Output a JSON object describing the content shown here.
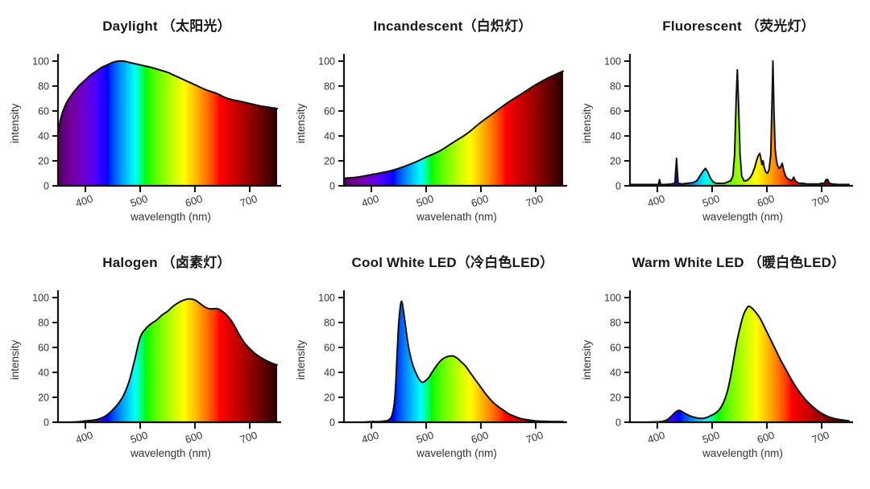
{
  "figure": {
    "background": "#ffffff",
    "text_color": "#333333",
    "curve_line_color": "#111111",
    "description": "Spectral power distributions of six light sources"
  },
  "chart_data": [
    {
      "id": "daylight",
      "type": "area",
      "title": "Daylight （太阳光）",
      "xlabel": "wavelength (nm)",
      "ylabel": "intensity",
      "xlim": [
        350,
        750
      ],
      "ylim": [
        0,
        100
      ],
      "x_ticks": [
        400,
        500,
        600,
        700
      ],
      "y_ticks": [
        0,
        20,
        40,
        60,
        80,
        100
      ],
      "smooth": true,
      "fill": "visible-spectrum-gradient",
      "points": [
        [
          350,
          42
        ],
        [
          355,
          54
        ],
        [
          360,
          61
        ],
        [
          365,
          66
        ],
        [
          370,
          70
        ],
        [
          380,
          76
        ],
        [
          390,
          81
        ],
        [
          400,
          85
        ],
        [
          410,
          89
        ],
        [
          420,
          92
        ],
        [
          430,
          95
        ],
        [
          440,
          97
        ],
        [
          450,
          99
        ],
        [
          460,
          100
        ],
        [
          470,
          100
        ],
        [
          480,
          99
        ],
        [
          490,
          98
        ],
        [
          500,
          97
        ],
        [
          510,
          96
        ],
        [
          520,
          95
        ],
        [
          535,
          93
        ],
        [
          550,
          91
        ],
        [
          565,
          88
        ],
        [
          580,
          85
        ],
        [
          600,
          81
        ],
        [
          620,
          77
        ],
        [
          640,
          74
        ],
        [
          660,
          70
        ],
        [
          680,
          68
        ],
        [
          700,
          66
        ],
        [
          720,
          64
        ],
        [
          735,
          63
        ],
        [
          750,
          62
        ]
      ]
    },
    {
      "id": "incandescent",
      "type": "area",
      "title": "Incandescent（白炽灯）",
      "xlabel": "wavelenath (nm)",
      "ylabel": "intensity",
      "xlim": [
        350,
        750
      ],
      "ylim": [
        0,
        100
      ],
      "x_ticks": [
        400,
        500,
        600,
        700
      ],
      "y_ticks": [
        0,
        20,
        40,
        60,
        80,
        100
      ],
      "smooth": true,
      "fill": "visible-spectrum-gradient",
      "points": [
        [
          350,
          6
        ],
        [
          375,
          7
        ],
        [
          400,
          9
        ],
        [
          425,
          11
        ],
        [
          450,
          14
        ],
        [
          475,
          18
        ],
        [
          500,
          23
        ],
        [
          525,
          28
        ],
        [
          550,
          35
        ],
        [
          575,
          42
        ],
        [
          600,
          51
        ],
        [
          625,
          59
        ],
        [
          650,
          67
        ],
        [
          675,
          74
        ],
        [
          700,
          81
        ],
        [
          725,
          87
        ],
        [
          750,
          92
        ]
      ]
    },
    {
      "id": "fluorescent",
      "type": "area",
      "title": "Fluorescent （荧光灯）",
      "xlabel": "wavelength (nm)",
      "ylabel": "intensity",
      "xlim": [
        350,
        750
      ],
      "ylim": [
        0,
        100
      ],
      "x_ticks": [
        400,
        500,
        600,
        700
      ],
      "y_ticks": [
        0,
        20,
        40,
        60,
        80,
        100
      ],
      "smooth": false,
      "fill": "visible-spectrum-gradient",
      "points": [
        [
          350,
          1
        ],
        [
          365,
          1
        ],
        [
          380,
          1
        ],
        [
          395,
          1
        ],
        [
          402,
          1
        ],
        [
          404,
          5
        ],
        [
          406,
          1
        ],
        [
          415,
          1
        ],
        [
          425,
          1.5
        ],
        [
          432,
          2
        ],
        [
          435,
          22
        ],
        [
          438,
          2
        ],
        [
          445,
          1.5
        ],
        [
          455,
          2
        ],
        [
          465,
          2.5
        ],
        [
          472,
          4
        ],
        [
          478,
          8
        ],
        [
          484,
          12
        ],
        [
          488,
          14
        ],
        [
          492,
          11
        ],
        [
          497,
          6
        ],
        [
          502,
          3
        ],
        [
          508,
          2
        ],
        [
          515,
          2
        ],
        [
          522,
          2
        ],
        [
          528,
          3
        ],
        [
          534,
          4
        ],
        [
          538,
          8
        ],
        [
          541,
          25
        ],
        [
          544,
          70
        ],
        [
          546,
          93
        ],
        [
          548,
          70
        ],
        [
          551,
          25
        ],
        [
          554,
          8
        ],
        [
          558,
          4
        ],
        [
          562,
          4
        ],
        [
          566,
          5
        ],
        [
          570,
          7
        ],
        [
          574,
          10
        ],
        [
          578,
          15
        ],
        [
          581,
          20
        ],
        [
          584,
          24
        ],
        [
          587,
          26
        ],
        [
          589,
          22
        ],
        [
          591,
          17
        ],
        [
          593,
          20
        ],
        [
          595,
          15
        ],
        [
          598,
          11
        ],
        [
          601,
          10
        ],
        [
          604,
          13
        ],
        [
          607,
          25
        ],
        [
          609,
          60
        ],
        [
          611,
          100
        ],
        [
          613,
          60
        ],
        [
          615,
          30
        ],
        [
          617,
          22
        ],
        [
          619,
          17
        ],
        [
          622,
          14
        ],
        [
          625,
          15
        ],
        [
          628,
          18
        ],
        [
          631,
          12
        ],
        [
          634,
          8
        ],
        [
          637,
          6
        ],
        [
          641,
          5
        ],
        [
          645,
          4
        ],
        [
          649,
          7
        ],
        [
          652,
          4
        ],
        [
          656,
          2.5
        ],
        [
          660,
          2
        ],
        [
          666,
          2
        ],
        [
          672,
          1.5
        ],
        [
          680,
          1.5
        ],
        [
          688,
          1.5
        ],
        [
          695,
          1.5
        ],
        [
          700,
          2
        ],
        [
          705,
          2
        ],
        [
          708,
          5
        ],
        [
          711,
          5
        ],
        [
          714,
          2
        ],
        [
          720,
          1.5
        ],
        [
          730,
          1
        ],
        [
          740,
          1
        ],
        [
          750,
          1
        ]
      ]
    },
    {
      "id": "halogen",
      "type": "area",
      "title": "Halogen （卤素灯）",
      "xlabel": "wavelength (nm)",
      "ylabel": "intensity",
      "xlim": [
        350,
        750
      ],
      "ylim": [
        0,
        100
      ],
      "x_ticks": [
        400,
        500,
        600,
        700
      ],
      "y_ticks": [
        0,
        20,
        40,
        60,
        80,
        100
      ],
      "smooth": true,
      "fill": "visible-spectrum-gradient",
      "points": [
        [
          350,
          0
        ],
        [
          370,
          0
        ],
        [
          390,
          0.5
        ],
        [
          400,
          1
        ],
        [
          410,
          1.5
        ],
        [
          420,
          2
        ],
        [
          430,
          3.5
        ],
        [
          440,
          6
        ],
        [
          450,
          10
        ],
        [
          460,
          15
        ],
        [
          470,
          22
        ],
        [
          480,
          33
        ],
        [
          490,
          50
        ],
        [
          500,
          68
        ],
        [
          510,
          75
        ],
        [
          520,
          79
        ],
        [
          530,
          82
        ],
        [
          540,
          86
        ],
        [
          550,
          89
        ],
        [
          560,
          93
        ],
        [
          570,
          96
        ],
        [
          580,
          98
        ],
        [
          590,
          99
        ],
        [
          600,
          98
        ],
        [
          610,
          95
        ],
        [
          618,
          92.5
        ],
        [
          626,
          91
        ],
        [
          634,
          91
        ],
        [
          642,
          91
        ],
        [
          650,
          89
        ],
        [
          660,
          85
        ],
        [
          670,
          79
        ],
        [
          680,
          71
        ],
        [
          690,
          64
        ],
        [
          700,
          59
        ],
        [
          710,
          55
        ],
        [
          720,
          52
        ],
        [
          730,
          49.5
        ],
        [
          740,
          47.5
        ],
        [
          750,
          46
        ]
      ]
    },
    {
      "id": "cool-white-led",
      "type": "area",
      "title": "Cool White LED（冷白色LED）",
      "xlabel": "wavelength (nm)",
      "ylabel": "intensity",
      "xlim": [
        350,
        750
      ],
      "ylim": [
        0,
        100
      ],
      "x_ticks": [
        400,
        500,
        600,
        700
      ],
      "y_ticks": [
        0,
        20,
        40,
        60,
        80,
        100
      ],
      "smooth": true,
      "fill": "visible-spectrum-gradient",
      "points": [
        [
          350,
          0
        ],
        [
          380,
          0
        ],
        [
          400,
          0.5
        ],
        [
          415,
          0.5
        ],
        [
          425,
          1
        ],
        [
          432,
          2
        ],
        [
          438,
          6
        ],
        [
          443,
          20
        ],
        [
          447,
          55
        ],
        [
          450,
          80
        ],
        [
          453,
          93
        ],
        [
          455,
          97
        ],
        [
          457,
          94
        ],
        [
          460,
          85
        ],
        [
          464,
          72
        ],
        [
          468,
          60
        ],
        [
          473,
          50
        ],
        [
          478,
          43
        ],
        [
          483,
          38
        ],
        [
          488,
          34
        ],
        [
          493,
          32
        ],
        [
          498,
          33
        ],
        [
          505,
          36
        ],
        [
          512,
          41
        ],
        [
          520,
          46
        ],
        [
          528,
          50
        ],
        [
          535,
          52
        ],
        [
          542,
          53
        ],
        [
          550,
          53
        ],
        [
          558,
          51
        ],
        [
          565,
          48
        ],
        [
          572,
          45
        ],
        [
          580,
          40
        ],
        [
          590,
          34
        ],
        [
          600,
          28
        ],
        [
          610,
          22
        ],
        [
          620,
          17
        ],
        [
          630,
          13
        ],
        [
          640,
          10
        ],
        [
          650,
          7
        ],
        [
          660,
          5
        ],
        [
          672,
          3
        ],
        [
          685,
          2
        ],
        [
          700,
          1
        ],
        [
          715,
          0.8
        ],
        [
          730,
          0.6
        ],
        [
          750,
          0.5
        ]
      ]
    },
    {
      "id": "warm-white-led",
      "type": "area",
      "title": "Warm White LED （暖白色LED）",
      "xlabel": "wavelength (nm)",
      "ylabel": "intensity",
      "xlim": [
        350,
        750
      ],
      "ylim": [
        0,
        100
      ],
      "x_ticks": [
        400,
        500,
        600,
        700
      ],
      "y_ticks": [
        0,
        20,
        40,
        60,
        80,
        100
      ],
      "smooth": true,
      "fill": "visible-spectrum-gradient",
      "points": [
        [
          350,
          0
        ],
        [
          380,
          0
        ],
        [
          400,
          0.3
        ],
        [
          410,
          0.8
        ],
        [
          418,
          2
        ],
        [
          426,
          5
        ],
        [
          433,
          8
        ],
        [
          440,
          9.5
        ],
        [
          447,
          8
        ],
        [
          455,
          6
        ],
        [
          463,
          4.5
        ],
        [
          472,
          3.5
        ],
        [
          480,
          3
        ],
        [
          488,
          3.5
        ],
        [
          496,
          5
        ],
        [
          505,
          7
        ],
        [
          513,
          10
        ],
        [
          520,
          15
        ],
        [
          528,
          25
        ],
        [
          536,
          42
        ],
        [
          544,
          62
        ],
        [
          552,
          78
        ],
        [
          558,
          87
        ],
        [
          564,
          92
        ],
        [
          568,
          93
        ],
        [
          574,
          91
        ],
        [
          580,
          88
        ],
        [
          588,
          83
        ],
        [
          596,
          76
        ],
        [
          605,
          68
        ],
        [
          615,
          59
        ],
        [
          625,
          50
        ],
        [
          635,
          42
        ],
        [
          645,
          34
        ],
        [
          655,
          27
        ],
        [
          665,
          21
        ],
        [
          675,
          16
        ],
        [
          685,
          12
        ],
        [
          695,
          8.5
        ],
        [
          705,
          6
        ],
        [
          715,
          4
        ],
        [
          725,
          2.8
        ],
        [
          735,
          2
        ],
        [
          750,
          1
        ]
      ]
    }
  ]
}
